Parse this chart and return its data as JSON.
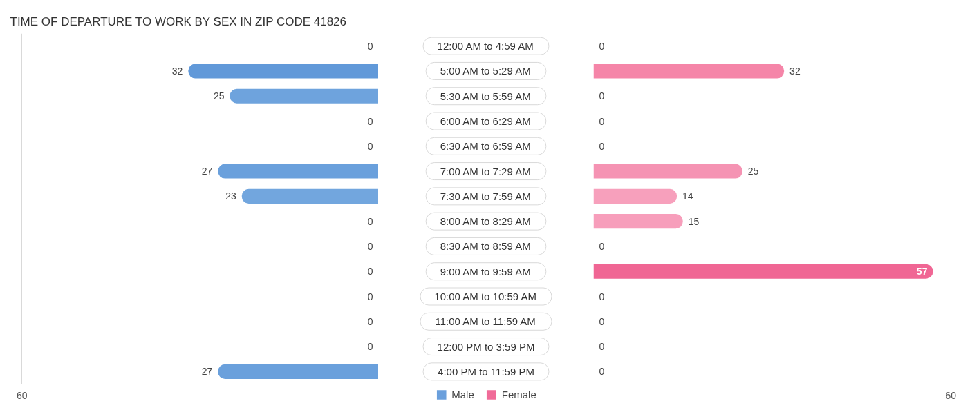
{
  "chart_data": [
    {
      "type": "bar",
      "orientation": "horizontal",
      "title": "TIME OF DEPARTURE TO WORK BY SEX IN ZIP CODE 41826",
      "categories": [
        "12:00 AM to 4:59 AM",
        "5:00 AM to 5:29 AM",
        "5:30 AM to 5:59 AM",
        "6:00 AM to 6:29 AM",
        "6:30 AM to 6:59 AM",
        "7:00 AM to 7:29 AM",
        "7:30 AM to 7:59 AM",
        "8:00 AM to 8:29 AM",
        "8:30 AM to 8:59 AM",
        "9:00 AM to 9:59 AM",
        "10:00 AM to 10:59 AM",
        "11:00 AM to 11:59 AM",
        "12:00 PM to 3:59 PM",
        "4:00 PM to 11:59 PM"
      ],
      "series": [
        {
          "name": "Male",
          "color": "#6a9fdc",
          "colors": [
            "#aac9ed",
            "#6199d9",
            "#6ea3dd",
            "#aac9ed",
            "#aac9ed",
            "#6aa0dc",
            "#72a6de",
            "#aac9ed",
            "#aac9ed",
            "#aac9ed",
            "#aac9ed",
            "#aac9ed",
            "#aac9ed",
            "#6aa0dc"
          ],
          "values": [
            0,
            32,
            25,
            0,
            0,
            27,
            23,
            0,
            0,
            0,
            0,
            0,
            0,
            27
          ]
        }
      ],
      "xlim": [
        62,
        0
      ],
      "xticks": [
        60
      ],
      "grid": "x",
      "data_labels": true,
      "legend": "bottom right"
    },
    {
      "type": "bar",
      "orientation": "horizontal",
      "categories": [
        "12:00 AM to 4:59 AM",
        "5:00 AM to 5:29 AM",
        "5:30 AM to 5:59 AM",
        "6:00 AM to 6:29 AM",
        "6:30 AM to 6:59 AM",
        "7:00 AM to 7:29 AM",
        "7:30 AM to 7:59 AM",
        "8:00 AM to 8:29 AM",
        "8:30 AM to 8:59 AM",
        "9:00 AM to 9:59 AM",
        "10:00 AM to 10:59 AM",
        "11:00 AM to 11:59 AM",
        "12:00 PM to 3:59 PM",
        "4:00 PM to 11:59 PM"
      ],
      "series": [
        {
          "name": "Female",
          "color": "#f06b98",
          "colors": [
            "#f8aac4",
            "#f585a8",
            "#f8aac4",
            "#f8aac4",
            "#f8aac4",
            "#f593b3",
            "#f7a0bc",
            "#f79ebb",
            "#f8aac4",
            "#f06694",
            "#f8aac4",
            "#f8aac4",
            "#f8aac4",
            "#f8aac4"
          ],
          "values": [
            0,
            32,
            0,
            0,
            0,
            25,
            14,
            15,
            0,
            57,
            0,
            0,
            0,
            0
          ]
        }
      ],
      "xlim": [
        0,
        62
      ],
      "xticks": [
        60
      ],
      "grid": "x",
      "data_labels": true,
      "legend": "bottom left",
      "tick_labels": "x"
    }
  ]
}
